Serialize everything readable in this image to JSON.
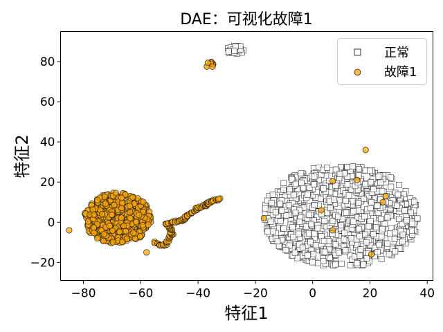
{
  "chart_data": {
    "type": "scatter",
    "title": "DAE：可视化故障1",
    "xlabel": "特征1",
    "ylabel": "特征2",
    "xlim": [
      -88,
      42
    ],
    "ylim": [
      -29,
      95
    ],
    "xticks": [
      -80,
      -60,
      -40,
      -20,
      0,
      20,
      40
    ],
    "yticks": [
      -20,
      0,
      20,
      40,
      60,
      80
    ],
    "xtick_labels": [
      "−80",
      "−60",
      "−40",
      "−20",
      "0",
      "20",
      "40"
    ],
    "ytick_labels": [
      "−20",
      "0",
      "20",
      "40",
      "60",
      "80"
    ],
    "legend_position": "upper-right",
    "grid": false,
    "series": [
      {
        "name": "正常",
        "marker": "square",
        "color": "#ffffff",
        "edgecolor": "#333333",
        "clusters": [
          {
            "shape": "ellipse",
            "cx": 10,
            "cy": 3,
            "rx": 28,
            "ry": 26,
            "count": 900
          },
          {
            "shape": "ellipse",
            "cx": -27,
            "cy": 86,
            "rx": 3,
            "ry": 2.5,
            "count": 25
          }
        ]
      },
      {
        "name": "故障1",
        "marker": "circle",
        "color": "#ffa500",
        "edgecolor": "#222222",
        "clusters": [
          {
            "shape": "ellipse",
            "cx": -68,
            "cy": 2,
            "rx": 12,
            "ry": 13,
            "count": 550
          },
          {
            "shape": "ellipse",
            "cx": -36,
            "cy": 78.5,
            "rx": 1.5,
            "ry": 1.5,
            "count": 8
          }
        ],
        "tail": [
          [
            -55,
            -10
          ],
          [
            -53,
            -12
          ],
          [
            -51,
            -11
          ],
          [
            -50,
            -8
          ],
          [
            -49,
            -6
          ],
          [
            -49.5,
            -4
          ],
          [
            -50,
            -2
          ],
          [
            -51,
            -1
          ],
          [
            -49,
            0
          ],
          [
            -47,
            0.5
          ],
          [
            -45,
            1
          ],
          [
            -44,
            3
          ],
          [
            -43,
            4
          ],
          [
            -41,
            6
          ],
          [
            -40,
            7
          ],
          [
            -38,
            8
          ],
          [
            -37,
            9
          ],
          [
            -35.5,
            10
          ],
          [
            -34,
            11
          ],
          [
            -32,
            12
          ]
        ],
        "outliers": [
          [
            18.5,
            36
          ],
          [
            -17,
            2
          ],
          [
            7,
            20.5
          ],
          [
            15.5,
            21
          ],
          [
            25.5,
            13
          ],
          [
            24.5,
            10
          ],
          [
            3,
            6
          ],
          [
            7,
            -4
          ],
          [
            20.5,
            -16
          ],
          [
            -58,
            -15
          ],
          [
            -85,
            -4
          ]
        ]
      }
    ]
  }
}
